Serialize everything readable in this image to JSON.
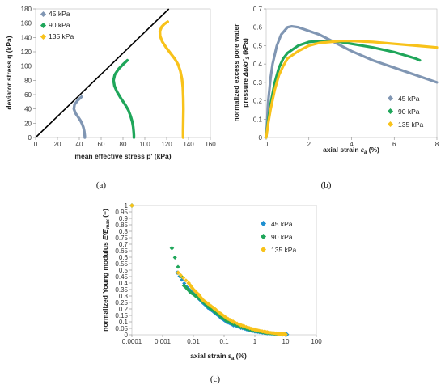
{
  "colors": {
    "s45": "#8096B3",
    "s45c": "#1E8FD0",
    "s90": "#1FA65A",
    "s135": "#F8C21A",
    "line": "#000000"
  },
  "chart_data": [
    {
      "id": "a",
      "type": "scatter",
      "caption": "(a)",
      "xlabel": "mean effective stress p' (kPa)",
      "ylabel": "deviator stress q (kPa)",
      "xlim": [
        0,
        160
      ],
      "ylim": [
        0,
        180
      ],
      "xticks": [
        "0",
        "20",
        "40",
        "60",
        "80",
        "100",
        "120",
        "140",
        "160"
      ],
      "yticks": [
        "0",
        "20",
        "40",
        "60",
        "80",
        "100",
        "120",
        "140",
        "160",
        "180"
      ],
      "legend_position": "top-left",
      "line": {
        "x": [
          0,
          122
        ],
        "y": [
          0,
          180
        ]
      },
      "series": [
        {
          "name": "45 kPa",
          "color_key": "s45",
          "x": [
            45,
            45,
            44.8,
            44.5,
            43.8,
            42.6,
            41,
            38.8,
            36.5,
            35,
            35.6,
            38.5,
            42
          ],
          "y": [
            0,
            2,
            5,
            9,
            14,
            19,
            24,
            29,
            34,
            40,
            46,
            52,
            57
          ]
        },
        {
          "name": "90 kPa",
          "color_key": "s90",
          "x": [
            90,
            90,
            89.8,
            89.3,
            88.5,
            87,
            85,
            82,
            78,
            74.5,
            72.2,
            71.3,
            72.5,
            76,
            80.5,
            84
          ],
          "y": [
            0,
            3,
            8,
            15,
            22,
            30,
            38,
            46,
            55,
            64,
            72,
            80,
            88,
            96,
            103,
            108
          ]
        },
        {
          "name": "135 kPa",
          "color_key": "s135",
          "x": [
            135,
            135,
            135.2,
            135.3,
            135.2,
            134.8,
            134,
            132.5,
            130.5,
            127.5,
            123.5,
            119.5,
            116,
            114,
            113.8,
            115.5,
            118,
            121
          ],
          "y": [
            0,
            10,
            25,
            40,
            55,
            70,
            82,
            93,
            102,
            110,
            118,
            126,
            134,
            142,
            149,
            155,
            159,
            162
          ]
        }
      ]
    },
    {
      "id": "b",
      "type": "line",
      "caption": "(b)",
      "xlabel": "axial strain εa (%)",
      "ylabel": "normalized excess pore water pressure Δu/σ'3 (kPa)",
      "xlim": [
        0,
        8
      ],
      "ylim": [
        0,
        0.7
      ],
      "xticks": [
        "0",
        "2",
        "4",
        "6",
        "8"
      ],
      "yticks": [
        "0",
        "0.1",
        "0.2",
        "0.3",
        "0.4",
        "0.5",
        "0.6",
        "0.7"
      ],
      "legend_position": "bottom-right",
      "series": [
        {
          "name": "45 kPa",
          "color_key": "s45",
          "x": [
            0,
            0.05,
            0.1,
            0.2,
            0.3,
            0.5,
            0.7,
            1,
            1.2,
            1.5,
            2,
            2.5,
            3,
            3.5,
            4,
            5,
            6,
            7,
            8
          ],
          "y": [
            0,
            0.1,
            0.2,
            0.32,
            0.4,
            0.5,
            0.56,
            0.6,
            0.605,
            0.6,
            0.58,
            0.56,
            0.53,
            0.5,
            0.47,
            0.42,
            0.38,
            0.34,
            0.3
          ]
        },
        {
          "name": "90 kPa",
          "color_key": "s90",
          "x": [
            0,
            0.05,
            0.1,
            0.2,
            0.4,
            0.6,
            0.8,
            1,
            1.5,
            2,
            2.5,
            3,
            3.5,
            4,
            5,
            6,
            7,
            7.2
          ],
          "y": [
            0,
            0.05,
            0.1,
            0.18,
            0.3,
            0.38,
            0.43,
            0.46,
            0.5,
            0.52,
            0.525,
            0.525,
            0.52,
            0.51,
            0.49,
            0.465,
            0.43,
            0.42
          ]
        },
        {
          "name": "135 kPa",
          "color_key": "s135",
          "x": [
            0,
            0.05,
            0.1,
            0.2,
            0.4,
            0.6,
            0.8,
            1,
            1.5,
            2,
            2.5,
            3,
            3.5,
            4,
            5,
            6,
            7,
            8
          ],
          "y": [
            0,
            0.04,
            0.08,
            0.15,
            0.26,
            0.34,
            0.39,
            0.43,
            0.47,
            0.5,
            0.515,
            0.52,
            0.525,
            0.525,
            0.52,
            0.51,
            0.5,
            0.49
          ]
        }
      ]
    },
    {
      "id": "c",
      "type": "scatter",
      "caption": "(c)",
      "xlabel": "axial strain εa (%)",
      "ylabel": "normalized Young modulus E/Emax (−)",
      "xscale": "log",
      "xlim": [
        0.0001,
        100
      ],
      "ylim": [
        0,
        1
      ],
      "xticks": [
        "0.0001",
        "0.001",
        "0.01",
        "0.1",
        "1",
        "10",
        "100"
      ],
      "yticks": [
        "0",
        "0.05",
        "0.1",
        "0.15",
        "0.2",
        "0.25",
        "0.3",
        "0.35",
        "0.4",
        "0.45",
        "0.5",
        "0.55",
        "0.6",
        "0.65",
        "0.7",
        "0.75",
        "0.8",
        "0.85",
        "0.9",
        "0.95",
        "1"
      ],
      "legend_position": "top-right",
      "series": [
        {
          "name": "45 kPa",
          "color_key": "s45c",
          "x": [
            0.0001,
            0.003,
            0.006,
            0.01,
            0.015,
            0.02,
            0.03,
            0.05,
            0.08,
            0.12,
            0.2,
            0.35,
            0.6,
            1,
            1.6,
            2.5,
            4,
            6,
            8,
            10,
            11
          ],
          "y": [
            1,
            0.48,
            0.37,
            0.32,
            0.28,
            0.25,
            0.21,
            0.17,
            0.13,
            0.1,
            0.075,
            0.055,
            0.038,
            0.026,
            0.018,
            0.012,
            0.008,
            0.005,
            0.004,
            0.003,
            0.002
          ]
        },
        {
          "name": "90 kPa",
          "color_key": "s90",
          "x": [
            0.0001,
            0.002,
            0.005,
            0.008,
            0.012,
            0.02,
            0.03,
            0.05,
            0.08,
            0.12,
            0.2,
            0.35,
            0.6,
            1,
            1.6,
            2.5,
            4,
            6,
            8
          ],
          "y": [
            1,
            0.67,
            0.38,
            0.33,
            0.3,
            0.26,
            0.22,
            0.18,
            0.14,
            0.11,
            0.085,
            0.062,
            0.044,
            0.031,
            0.022,
            0.015,
            0.01,
            0.006,
            0.004
          ]
        },
        {
          "name": "135 kPa",
          "color_key": "s135",
          "x": [
            0.0001,
            0.0032,
            0.007,
            0.01,
            0.015,
            0.02,
            0.03,
            0.05,
            0.08,
            0.12,
            0.2,
            0.35,
            0.6,
            1,
            1.6,
            2.5,
            4,
            6,
            8,
            10
          ],
          "y": [
            1,
            0.48,
            0.4,
            0.35,
            0.31,
            0.27,
            0.24,
            0.2,
            0.16,
            0.13,
            0.1,
            0.075,
            0.055,
            0.04,
            0.028,
            0.02,
            0.013,
            0.008,
            0.005,
            0.003
          ]
        }
      ]
    }
  ]
}
